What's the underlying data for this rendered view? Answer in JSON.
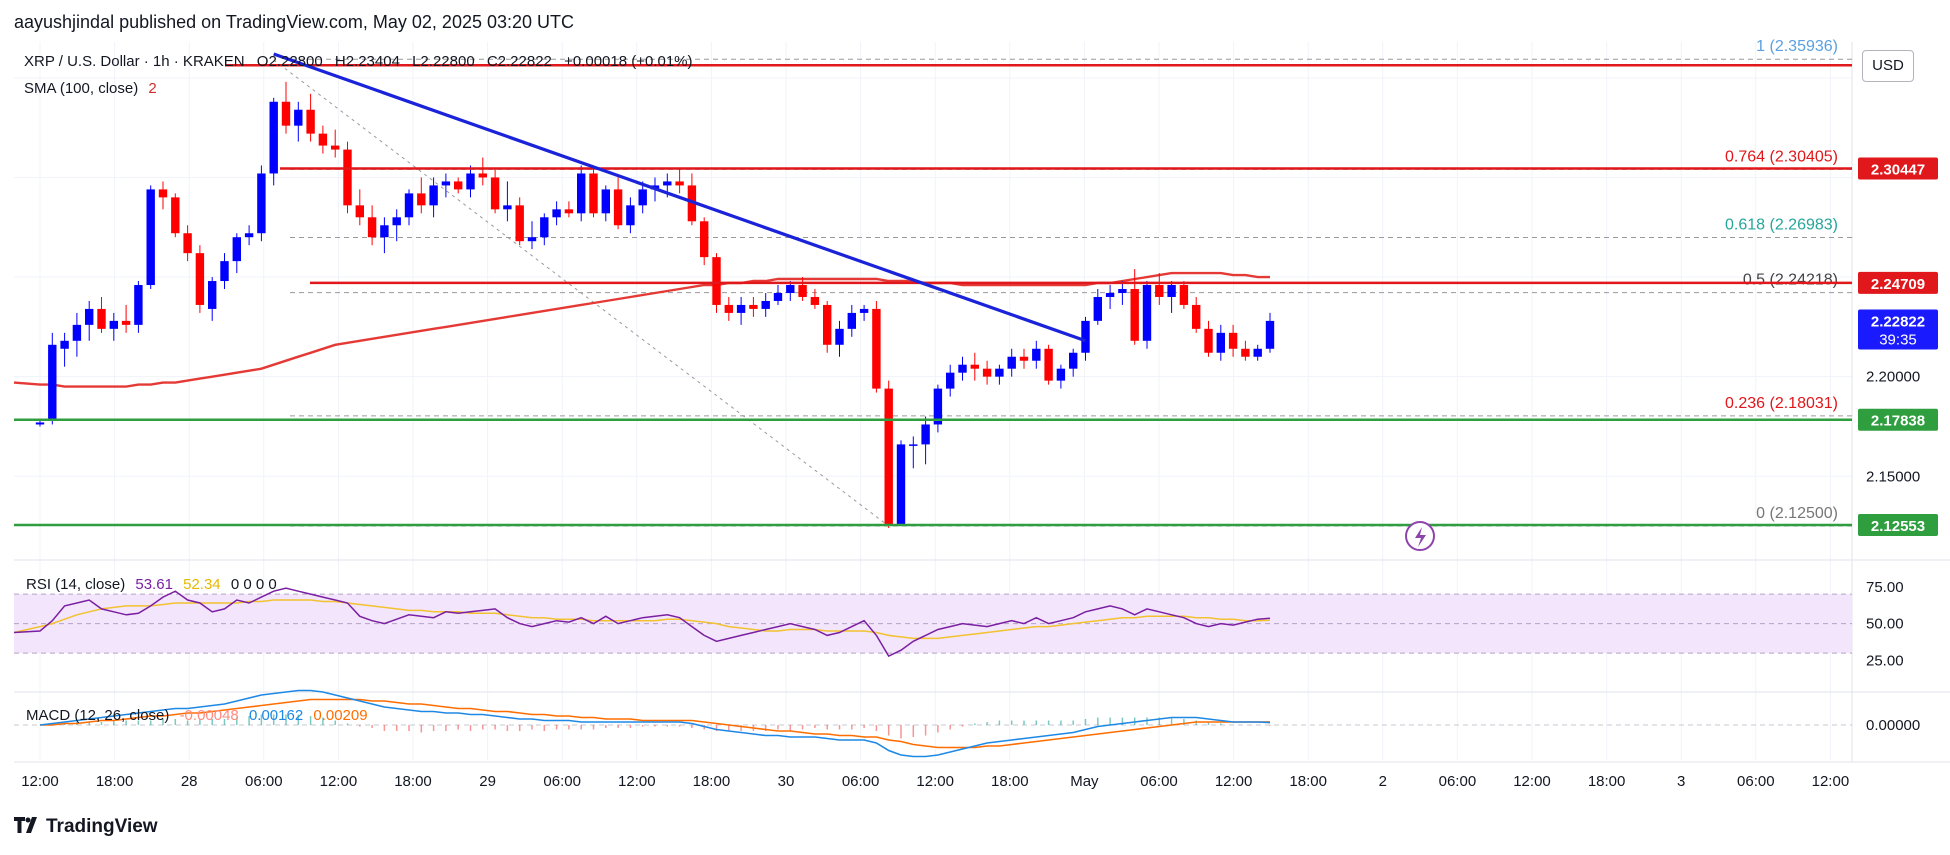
{
  "header": {
    "publisher": "aayushjindal published on TradingView.com, May 02, 2025 03:20 UTC"
  },
  "legend": {
    "symbol": "XRP / U.S. Dollar · 1h · KRAKEN",
    "open": "O2.22800",
    "high": "H2.23404",
    "low": "L2.22800",
    "close": "C2.22822",
    "change": "+0.00018 (+0.01%)",
    "sma_label": "SMA (100, close)",
    "sma_value": "2"
  },
  "currency": "USD",
  "footer": {
    "brand": "TradingView"
  },
  "colors": {
    "up": "#0000ff",
    "down": "#ff0000",
    "sma": "#e53935",
    "trendline": "#1a23d9",
    "resistance": "#e0171b",
    "support": "#2e9e3e",
    "rsi": "#7b1fa2",
    "rsi_ma": "#f2c230",
    "macd": "#1e88e5",
    "signal": "#ff6d00"
  },
  "chart_data": {
    "type": "candlestick",
    "title": "XRP / U.S. Dollar · 1h · KRAKEN",
    "x_ticks": [
      "12:00",
      "18:00",
      "28",
      "06:00",
      "12:00",
      "18:00",
      "29",
      "06:00",
      "12:00",
      "18:00",
      "30",
      "06:00",
      "12:00",
      "18:00",
      "May",
      "06:00",
      "12:00",
      "18:00",
      "2",
      "06:00",
      "12:00",
      "18:00",
      "3",
      "06:00",
      "12:00"
    ],
    "price_axis": {
      "ticks": [
        2.2,
        2.15
      ],
      "range": [
        2.118,
        2.368
      ]
    },
    "price_labels": [
      {
        "value": 2.30447,
        "text": "2.30447",
        "color": "#e0171b"
      },
      {
        "value": 2.24709,
        "text": "2.24709",
        "color": "#e0171b"
      },
      {
        "value": 2.22822,
        "text": "2.22822",
        "color": "#1a1aff",
        "sub": "39:35"
      },
      {
        "value": 2.17838,
        "text": "2.17838",
        "color": "#2e9e3e"
      },
      {
        "value": 2.12553,
        "text": "2.12553",
        "color": "#2e9e3e"
      }
    ],
    "fibonacci": [
      {
        "level": "1",
        "price": 2.35936,
        "label": "1 (2.35936)",
        "color": "#5aa0e0"
      },
      {
        "level": "0.764",
        "price": 2.30405,
        "label": "0.764 (2.30405)",
        "color": "#e0171b"
      },
      {
        "level": "0.618",
        "price": 2.26983,
        "label": "0.618 (2.26983)",
        "color": "#26a69a"
      },
      {
        "level": "0.5",
        "price": 2.24218,
        "label": "0.5 (2.24218)",
        "color": "#444444"
      },
      {
        "level": "0.236",
        "price": 2.18031,
        "label": "0.236 (2.18031)",
        "color": "#e0171b"
      },
      {
        "level": "0",
        "price": 2.125,
        "label": "0 (2.12500)",
        "color": "#777777"
      }
    ],
    "horizontal_lines": [
      {
        "price": 2.3563,
        "color": "#e0171b"
      },
      {
        "price": 2.30447,
        "color": "#e0171b"
      },
      {
        "price": 2.24709,
        "color": "#e0171b"
      },
      {
        "price": 2.17838,
        "color": "#2e9e3e"
      },
      {
        "price": 2.12553,
        "color": "#2e9e3e"
      }
    ],
    "trendline": {
      "from": {
        "bar": 19,
        "price": 2.362
      },
      "to": {
        "bar": 85,
        "price": 2.218
      }
    },
    "candles": [
      [
        2.176,
        2.178,
        2.175,
        2.177
      ],
      [
        2.178,
        2.222,
        2.176,
        2.216
      ],
      [
        2.214,
        2.222,
        2.205,
        2.218
      ],
      [
        2.218,
        2.232,
        2.21,
        2.226
      ],
      [
        2.226,
        2.238,
        2.218,
        2.234
      ],
      [
        2.234,
        2.24,
        2.222,
        2.224
      ],
      [
        2.224,
        2.232,
        2.218,
        2.228
      ],
      [
        2.228,
        2.236,
        2.222,
        2.226
      ],
      [
        2.226,
        2.248,
        2.222,
        2.246
      ],
      [
        2.246,
        2.296,
        2.244,
        2.294
      ],
      [
        2.294,
        2.298,
        2.284,
        2.29
      ],
      [
        2.29,
        2.292,
        2.27,
        2.272
      ],
      [
        2.272,
        2.276,
        2.258,
        2.262
      ],
      [
        2.262,
        2.266,
        2.232,
        2.236
      ],
      [
        2.234,
        2.25,
        2.228,
        2.248
      ],
      [
        2.248,
        2.262,
        2.244,
        2.258
      ],
      [
        2.258,
        2.272,
        2.252,
        2.27
      ],
      [
        2.27,
        2.276,
        2.266,
        2.272
      ],
      [
        2.272,
        2.306,
        2.268,
        2.302
      ],
      [
        2.302,
        2.34,
        2.296,
        2.338
      ],
      [
        2.338,
        2.348,
        2.322,
        2.326
      ],
      [
        2.326,
        2.338,
        2.318,
        2.334
      ],
      [
        2.334,
        2.342,
        2.318,
        2.322
      ],
      [
        2.322,
        2.326,
        2.312,
        2.316
      ],
      [
        2.316,
        2.324,
        2.31,
        2.314
      ],
      [
        2.314,
        2.318,
        2.282,
        2.286
      ],
      [
        2.286,
        2.294,
        2.276,
        2.28
      ],
      [
        2.28,
        2.286,
        2.266,
        2.27
      ],
      [
        2.27,
        2.28,
        2.262,
        2.276
      ],
      [
        2.276,
        2.284,
        2.268,
        2.28
      ],
      [
        2.28,
        2.294,
        2.276,
        2.292
      ],
      [
        2.292,
        2.3,
        2.282,
        2.286
      ],
      [
        2.286,
        2.3,
        2.28,
        2.296
      ],
      [
        2.296,
        2.302,
        2.29,
        2.298
      ],
      [
        2.298,
        2.3,
        2.292,
        2.294
      ],
      [
        2.294,
        2.306,
        2.29,
        2.302
      ],
      [
        2.302,
        2.31,
        2.296,
        2.3
      ],
      [
        2.3,
        2.304,
        2.282,
        2.284
      ],
      [
        2.284,
        2.298,
        2.278,
        2.286
      ],
      [
        2.286,
        2.29,
        2.266,
        2.268
      ],
      [
        2.268,
        2.278,
        2.264,
        2.27
      ],
      [
        2.27,
        2.282,
        2.266,
        2.28
      ],
      [
        2.28,
        2.288,
        2.276,
        2.284
      ],
      [
        2.284,
        2.288,
        2.28,
        2.282
      ],
      [
        2.282,
        2.306,
        2.278,
        2.302
      ],
      [
        2.302,
        2.306,
        2.28,
        2.282
      ],
      [
        2.282,
        2.296,
        2.278,
        2.294
      ],
      [
        2.294,
        2.3,
        2.274,
        2.276
      ],
      [
        2.276,
        2.29,
        2.272,
        2.286
      ],
      [
        2.286,
        2.298,
        2.282,
        2.294
      ],
      [
        2.294,
        2.3,
        2.288,
        2.296
      ],
      [
        2.296,
        2.302,
        2.29,
        2.298
      ],
      [
        2.298,
        2.304,
        2.292,
        2.296
      ],
      [
        2.296,
        2.302,
        2.276,
        2.278
      ],
      [
        2.278,
        2.28,
        2.256,
        2.26
      ],
      [
        2.26,
        2.262,
        2.232,
        2.236
      ],
      [
        2.236,
        2.24,
        2.228,
        2.232
      ],
      [
        2.232,
        2.24,
        2.226,
        2.236
      ],
      [
        2.236,
        2.24,
        2.23,
        2.234
      ],
      [
        2.234,
        2.242,
        2.23,
        2.238
      ],
      [
        2.238,
        2.246,
        2.236,
        2.242
      ],
      [
        2.242,
        2.248,
        2.238,
        2.246
      ],
      [
        2.246,
        2.25,
        2.238,
        2.24
      ],
      [
        2.24,
        2.244,
        2.234,
        2.236
      ],
      [
        2.236,
        2.238,
        2.212,
        2.216
      ],
      [
        2.216,
        2.228,
        2.21,
        2.224
      ],
      [
        2.224,
        2.236,
        2.22,
        2.232
      ],
      [
        2.232,
        2.236,
        2.228,
        2.234
      ],
      [
        2.234,
        2.238,
        2.192,
        2.194
      ],
      [
        2.194,
        2.198,
        2.124,
        2.126
      ],
      [
        2.126,
        2.168,
        2.125,
        2.166
      ],
      [
        2.166,
        2.17,
        2.154,
        2.166
      ],
      [
        2.166,
        2.18,
        2.156,
        2.176
      ],
      [
        2.176,
        2.196,
        2.172,
        2.194
      ],
      [
        2.194,
        2.206,
        2.19,
        2.202
      ],
      [
        2.202,
        2.21,
        2.198,
        2.206
      ],
      [
        2.206,
        2.212,
        2.198,
        2.204
      ],
      [
        2.204,
        2.208,
        2.196,
        2.2
      ],
      [
        2.2,
        2.206,
        2.196,
        2.204
      ],
      [
        2.204,
        2.214,
        2.2,
        2.21
      ],
      [
        2.21,
        2.214,
        2.204,
        2.208
      ],
      [
        2.208,
        2.218,
        2.204,
        2.214
      ],
      [
        2.214,
        2.216,
        2.196,
        2.198
      ],
      [
        2.198,
        2.206,
        2.194,
        2.204
      ],
      [
        2.204,
        2.214,
        2.2,
        2.212
      ],
      [
        2.212,
        2.23,
        2.208,
        2.228
      ],
      [
        2.228,
        2.244,
        2.226,
        2.24
      ],
      [
        2.24,
        2.246,
        2.234,
        2.242
      ],
      [
        2.242,
        2.248,
        2.236,
        2.244
      ],
      [
        2.244,
        2.254,
        2.216,
        2.218
      ],
      [
        2.218,
        2.248,
        2.214,
        2.246
      ],
      [
        2.246,
        2.252,
        2.236,
        2.24
      ],
      [
        2.24,
        2.248,
        2.232,
        2.246
      ],
      [
        2.246,
        2.248,
        2.234,
        2.236
      ],
      [
        2.236,
        2.24,
        2.222,
        2.224
      ],
      [
        2.224,
        2.228,
        2.21,
        2.212
      ],
      [
        2.212,
        2.226,
        2.208,
        2.222
      ],
      [
        2.222,
        2.226,
        2.21,
        2.214
      ],
      [
        2.214,
        2.218,
        2.208,
        2.21
      ],
      [
        2.21,
        2.216,
        2.208,
        2.214
      ],
      [
        2.214,
        2.232,
        2.212,
        2.228
      ]
    ],
    "rsi": {
      "label": "RSI (14, close)",
      "value": "53.61",
      "ma_value": "52.34",
      "extra": "0 0 0 0",
      "axis_ticks": [
        75,
        50,
        25
      ],
      "band": [
        70,
        30
      ],
      "values": [
        45,
        52,
        62,
        64,
        66,
        60,
        58,
        56,
        57,
        62,
        68,
        72,
        66,
        64,
        58,
        60,
        66,
        64,
        68,
        72,
        74,
        72,
        70,
        68,
        66,
        64,
        55,
        52,
        50,
        53,
        56,
        55,
        54,
        58,
        57,
        58,
        59,
        60,
        54,
        50,
        48,
        50,
        52,
        51,
        54,
        50,
        55,
        50,
        52,
        54,
        55,
        56,
        54,
        48,
        42,
        38,
        40,
        42,
        44,
        46,
        48,
        50,
        48,
        46,
        42,
        44,
        48,
        52,
        42,
        28,
        32,
        38,
        42,
        46,
        48,
        50,
        49,
        48,
        50,
        52,
        50,
        54,
        50,
        52,
        54,
        58,
        60,
        62,
        60,
        56,
        60,
        58,
        56,
        54,
        50,
        48,
        50,
        49,
        51,
        53,
        53.61
      ],
      "ma_values": [
        48,
        50,
        53,
        56,
        58,
        60,
        61,
        62,
        62,
        62,
        63,
        64,
        64,
        64,
        64,
        64,
        64,
        65,
        65,
        66,
        66,
        66,
        66,
        65,
        65,
        64,
        63,
        62,
        61,
        60,
        59,
        59,
        58,
        58,
        58,
        57,
        57,
        57,
        56,
        55,
        54,
        54,
        53,
        53,
        53,
        52,
        52,
        52,
        52,
        52,
        52,
        53,
        53,
        52,
        51,
        50,
        48,
        47,
        46,
        45,
        45,
        46,
        46,
        46,
        45,
        45,
        45,
        45,
        44,
        42,
        41,
        40,
        40,
        40,
        41,
        42,
        43,
        44,
        45,
        46,
        47,
        48,
        48,
        49,
        50,
        51,
        52,
        53,
        54,
        54,
        55,
        55,
        55,
        55,
        54,
        54,
        53,
        53,
        52,
        52,
        52.34
      ]
    },
    "macd": {
      "label": "MACD (12, 26, close)",
      "hist_value": "-0.00048",
      "macd_value": "0.00162",
      "signal_value": "0.00209",
      "axis_ticks": [
        "0.00000"
      ],
      "macd_values": [
        0.0,
        0.001,
        0.002,
        0.003,
        0.004,
        0.005,
        0.006,
        0.007,
        0.008,
        0.009,
        0.01,
        0.011,
        0.011,
        0.012,
        0.013,
        0.014,
        0.016,
        0.018,
        0.02,
        0.021,
        0.022,
        0.023,
        0.023,
        0.022,
        0.02,
        0.018,
        0.016,
        0.014,
        0.012,
        0.011,
        0.01,
        0.009,
        0.009,
        0.008,
        0.008,
        0.007,
        0.007,
        0.006,
        0.005,
        0.004,
        0.004,
        0.003,
        0.003,
        0.003,
        0.002,
        0.002,
        0.002,
        0.002,
        0.002,
        0.002,
        0.002,
        0.002,
        0.002,
        0.001,
        -0.001,
        -0.003,
        -0.004,
        -0.005,
        -0.006,
        -0.007,
        -0.007,
        -0.008,
        -0.008,
        -0.008,
        -0.009,
        -0.01,
        -0.01,
        -0.01,
        -0.012,
        -0.017,
        -0.02,
        -0.021,
        -0.021,
        -0.02,
        -0.018,
        -0.016,
        -0.014,
        -0.012,
        -0.011,
        -0.01,
        -0.009,
        -0.008,
        -0.007,
        -0.006,
        -0.005,
        -0.003,
        -0.001,
        0.0,
        0.001,
        0.002,
        0.003,
        0.004,
        0.005,
        0.005,
        0.005,
        0.004,
        0.003,
        0.002,
        0.002,
        0.002,
        0.00162
      ],
      "signal_values": [
        0.0,
        0.0,
        0.001,
        0.001,
        0.002,
        0.003,
        0.003,
        0.004,
        0.005,
        0.006,
        0.006,
        0.007,
        0.008,
        0.008,
        0.009,
        0.01,
        0.011,
        0.012,
        0.013,
        0.014,
        0.015,
        0.016,
        0.017,
        0.017,
        0.017,
        0.017,
        0.017,
        0.016,
        0.016,
        0.015,
        0.014,
        0.014,
        0.013,
        0.012,
        0.011,
        0.011,
        0.01,
        0.009,
        0.009,
        0.008,
        0.007,
        0.007,
        0.006,
        0.006,
        0.005,
        0.005,
        0.004,
        0.004,
        0.004,
        0.003,
        0.003,
        0.003,
        0.003,
        0.003,
        0.002,
        0.001,
        0.0,
        -0.001,
        -0.002,
        -0.003,
        -0.004,
        -0.004,
        -0.005,
        -0.006,
        -0.006,
        -0.007,
        -0.007,
        -0.008,
        -0.008,
        -0.01,
        -0.011,
        -0.013,
        -0.014,
        -0.015,
        -0.015,
        -0.015,
        -0.015,
        -0.014,
        -0.014,
        -0.013,
        -0.012,
        -0.011,
        -0.01,
        -0.009,
        -0.008,
        -0.007,
        -0.006,
        -0.005,
        -0.004,
        -0.003,
        -0.002,
        -0.001,
        0.0,
        0.001,
        0.002,
        0.002,
        0.002,
        0.002,
        0.002,
        0.002,
        0.00209
      ]
    },
    "sma_values": [
      2.196,
      2.196,
      2.195,
      2.195,
      2.195,
      2.195,
      2.195,
      2.195,
      2.196,
      2.196,
      2.197,
      2.197,
      2.198,
      2.199,
      2.2,
      2.201,
      2.202,
      2.203,
      2.204,
      2.206,
      2.208,
      2.21,
      2.212,
      2.214,
      2.216,
      2.217,
      2.218,
      2.219,
      2.22,
      2.221,
      2.222,
      2.223,
      2.224,
      2.225,
      2.226,
      2.227,
      2.228,
      2.229,
      2.23,
      2.231,
      2.232,
      2.233,
      2.234,
      2.235,
      2.236,
      2.237,
      2.238,
      2.239,
      2.24,
      2.241,
      2.242,
      2.243,
      2.244,
      2.245,
      2.246,
      2.246,
      2.247,
      2.247,
      2.248,
      2.248,
      2.249,
      2.249,
      2.249,
      2.249,
      2.249,
      2.249,
      2.249,
      2.249,
      2.249,
      2.248,
      2.248,
      2.248,
      2.247,
      2.247,
      2.247,
      2.246,
      2.246,
      2.246,
      2.246,
      2.246,
      2.246,
      2.246,
      2.246,
      2.246,
      2.246,
      2.246,
      2.247,
      2.247,
      2.248,
      2.249,
      2.25,
      2.251,
      2.252,
      2.252,
      2.252,
      2.252,
      2.252,
      2.251,
      2.251,
      2.25,
      2.25
    ]
  }
}
